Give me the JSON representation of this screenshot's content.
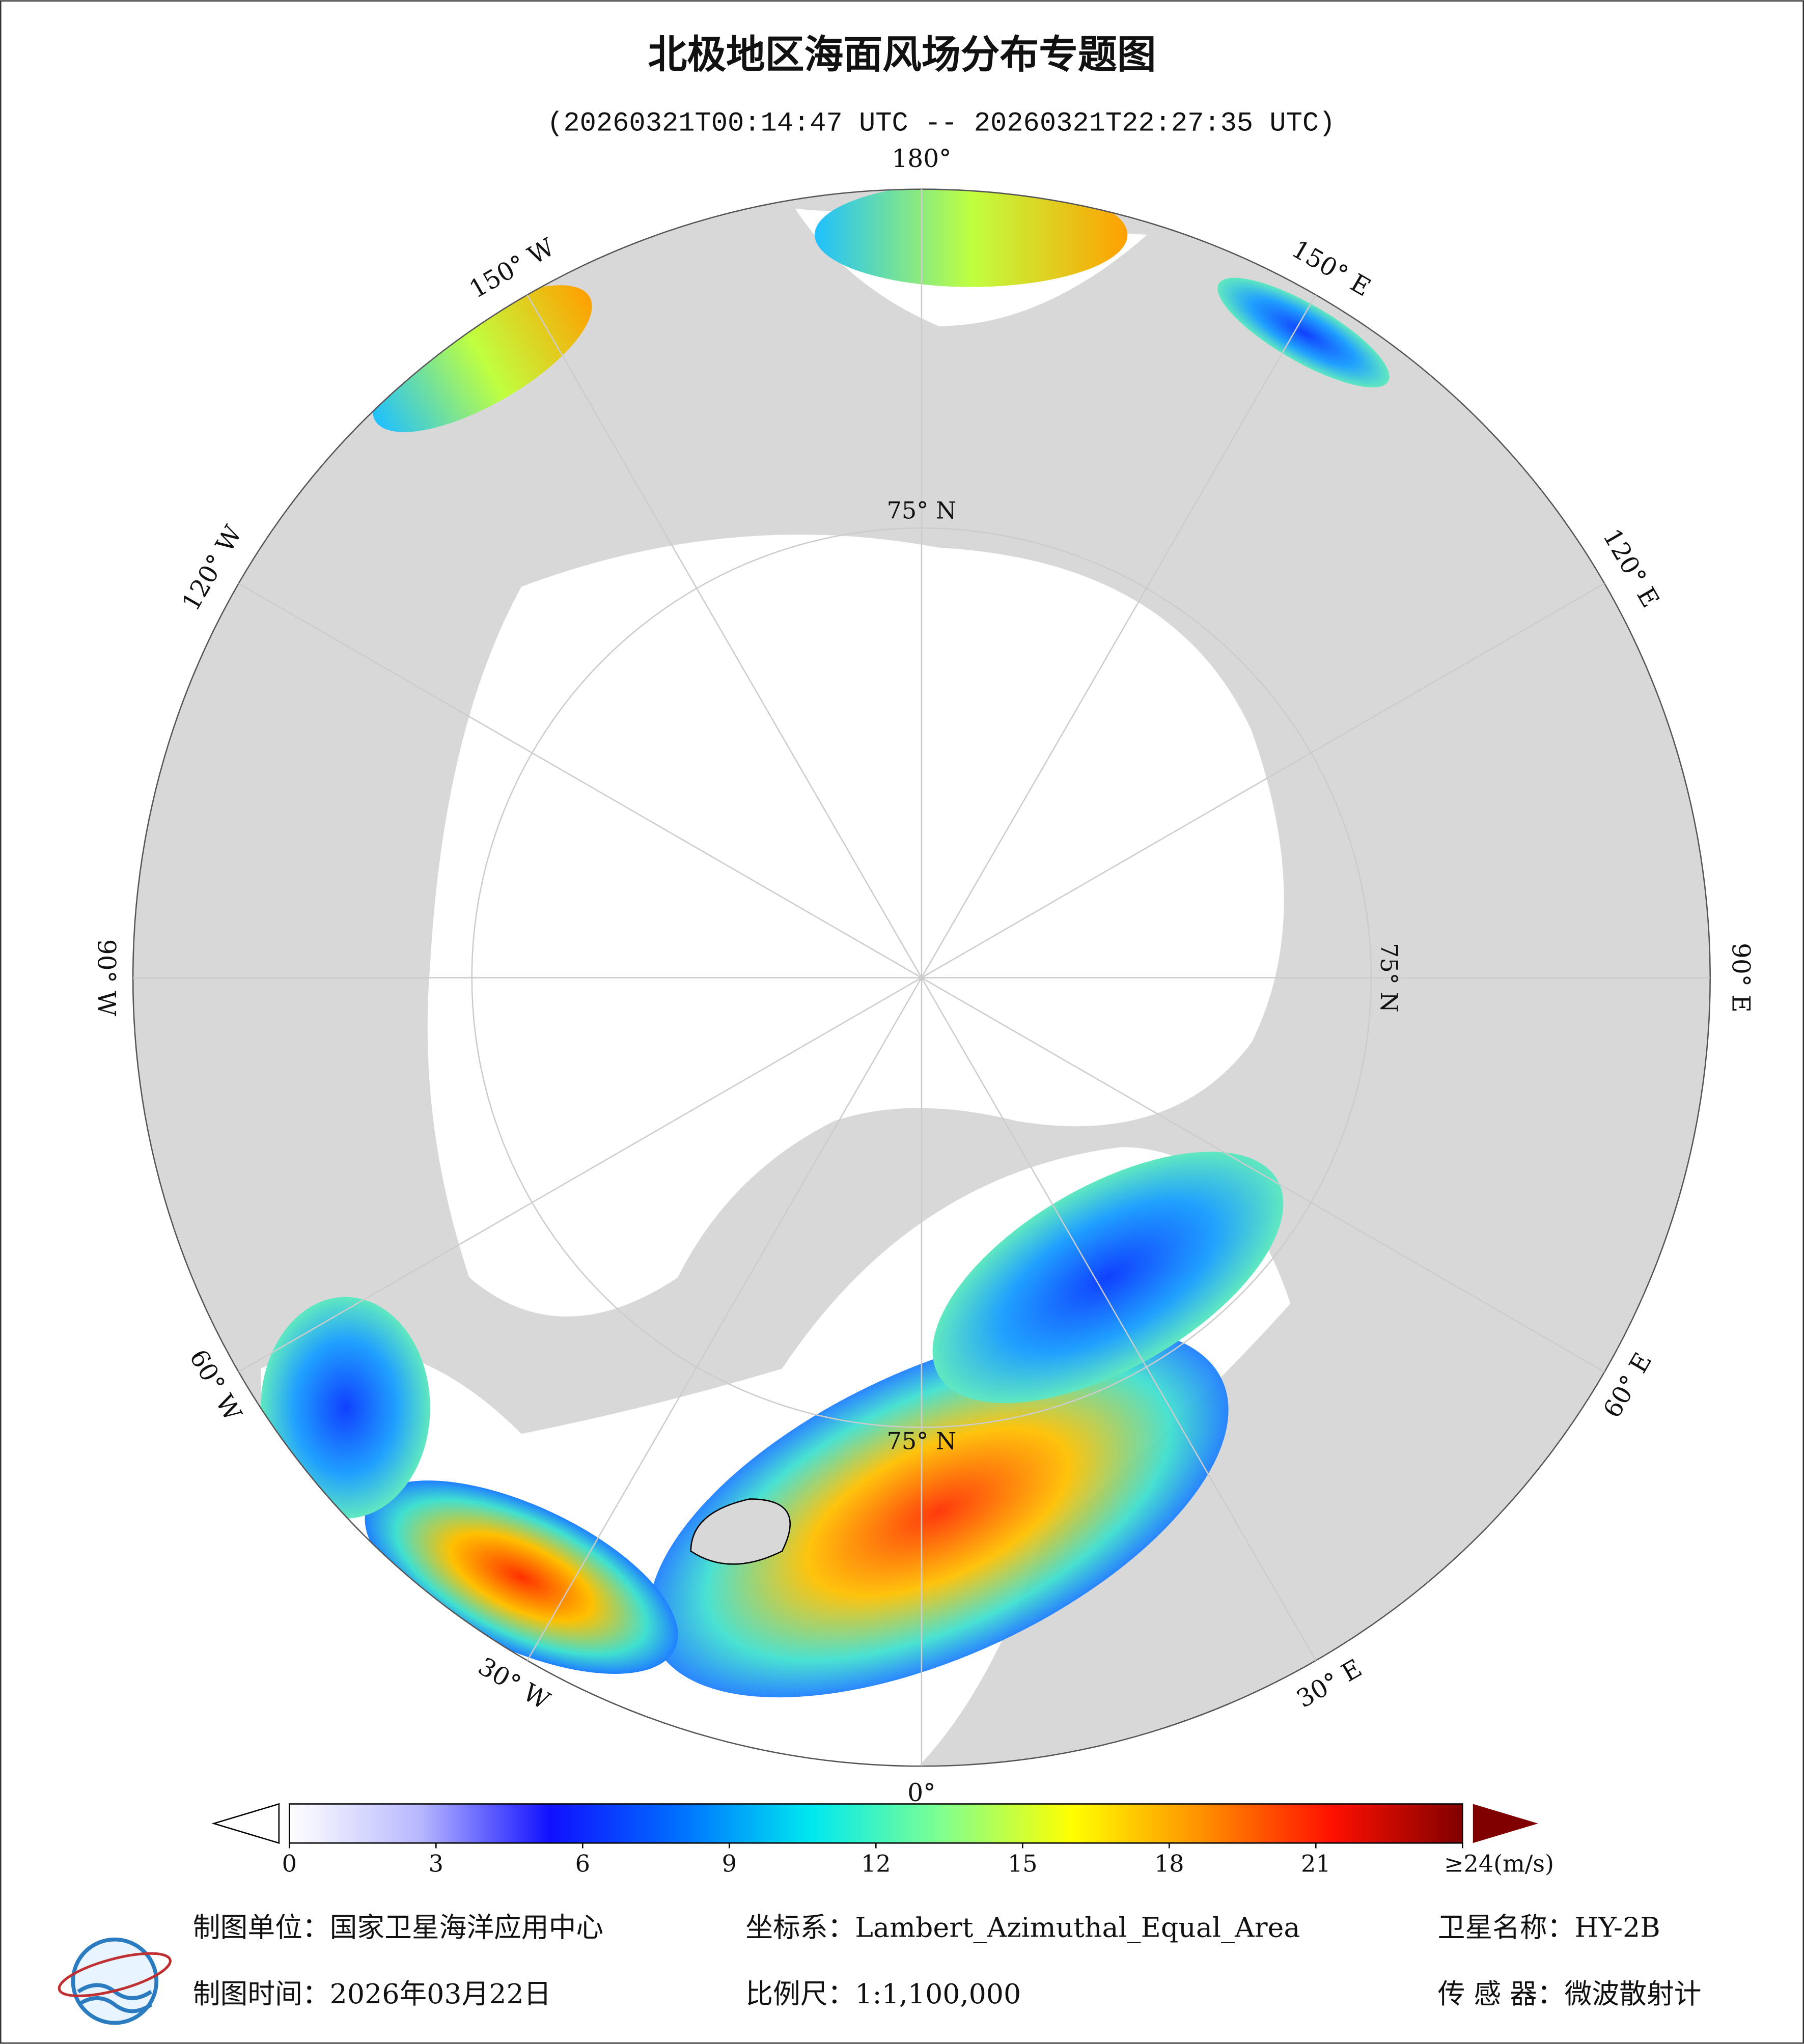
{
  "header": {
    "title": "北极地区海面风场分布专题图",
    "subtitle": "(20260321T00:14:47 UTC -- 20260321T22:27:35 UTC)"
  },
  "map": {
    "lon_labels": [
      {
        "lon": 180,
        "label": "180°"
      },
      {
        "lon": 150,
        "label": "150° E"
      },
      {
        "lon": 120,
        "label": "120° E"
      },
      {
        "lon": 90,
        "label": "90° E"
      },
      {
        "lon": 60,
        "label": "60° E"
      },
      {
        "lon": 30,
        "label": "30° E"
      },
      {
        "lon": 0,
        "label": "0°"
      },
      {
        "lon": -30,
        "label": "30° W"
      },
      {
        "lon": -60,
        "label": "60° W"
      },
      {
        "lon": -90,
        "label": "90° W"
      },
      {
        "lon": -120,
        "label": "120° W"
      },
      {
        "lon": -150,
        "label": "150° W"
      }
    ],
    "lat_labels": [
      {
        "lon": 180,
        "label": "75° N"
      },
      {
        "lon": 90,
        "label": "75° N"
      },
      {
        "lon": 0,
        "label": "75° N"
      }
    ]
  },
  "colorbar": {
    "lim": [
      0,
      24
    ],
    "ticks": [
      0,
      3,
      6,
      9,
      12,
      15,
      18,
      21,
      {
        "value": 24,
        "label": "≥24(m/s)"
      }
    ],
    "colors": [
      "#ffffff",
      "#b8b8ff",
      "#1010ff",
      "#0070ff",
      "#00e8f0",
      "#80ff90",
      "#ffff00",
      "#ff9000",
      "#ff1000",
      "#800000"
    ]
  },
  "footer": {
    "unit": "制图单位：国家卫星海洋应用中心",
    "projection": "坐标系：Lambert_Azimuthal_Equal_Area",
    "satellite": "卫星名称：HY-2B",
    "date": "制图时间：2026年03月22日",
    "scale": "比例尺：1:1,100,000",
    "sensor": "传 感 器：微波散射计"
  }
}
